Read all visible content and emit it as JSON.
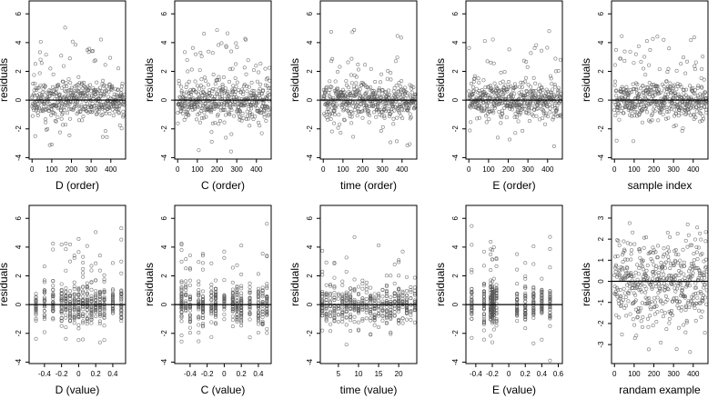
{
  "chart_data": [
    {
      "type": "scatter",
      "xlabel": "D (order)",
      "ylabel": "residuals",
      "xlim": [
        -15,
        475
      ],
      "ylim": [
        -4.1,
        6.9
      ],
      "xticks": [
        0,
        100,
        200,
        300,
        400
      ],
      "yticks": [
        -4,
        -2,
        0,
        2,
        4,
        6
      ],
      "hline": 0,
      "points": {
        "generator": "order",
        "n": 470,
        "seed": 11
      }
    },
    {
      "type": "scatter",
      "xlabel": "C (order)",
      "ylabel": "residuals",
      "xlim": [
        -15,
        475
      ],
      "ylim": [
        -4.1,
        6.9
      ],
      "xticks": [
        0,
        100,
        200,
        300,
        400
      ],
      "yticks": [
        -4,
        -2,
        0,
        2,
        4,
        6
      ],
      "hline": 0,
      "points": {
        "generator": "order",
        "n": 470,
        "seed": 23
      }
    },
    {
      "type": "scatter",
      "xlabel": "time (order)",
      "ylabel": "residuals",
      "xlim": [
        -15,
        475
      ],
      "ylim": [
        -4.1,
        6.9
      ],
      "xticks": [
        0,
        100,
        200,
        300,
        400
      ],
      "yticks": [
        -4,
        -2,
        0,
        2,
        4,
        6
      ],
      "hline": 0,
      "points": {
        "generator": "order",
        "n": 470,
        "seed": 37
      }
    },
    {
      "type": "scatter",
      "xlabel": "E (order)",
      "ylabel": "residuals",
      "xlim": [
        -15,
        475
      ],
      "ylim": [
        -4.1,
        6.9
      ],
      "xticks": [
        0,
        100,
        200,
        300,
        400
      ],
      "yticks": [
        -4,
        -2,
        0,
        2,
        4,
        6
      ],
      "hline": 0,
      "points": {
        "generator": "order",
        "n": 470,
        "seed": 41
      }
    },
    {
      "type": "scatter",
      "xlabel": "sample index",
      "ylabel": "residuals",
      "xlim": [
        -15,
        475
      ],
      "ylim": [
        -4.1,
        6.9
      ],
      "xticks": [
        0,
        100,
        200,
        300,
        400
      ],
      "yticks": [
        -4,
        -2,
        0,
        2,
        4,
        6
      ],
      "hline": 0,
      "points": {
        "generator": "order",
        "n": 470,
        "seed": 53
      }
    },
    {
      "type": "scatter",
      "xlabel": "D (value)",
      "ylabel": "residuals",
      "xlim": [
        -0.58,
        0.55
      ],
      "ylim": [
        -4.1,
        6.9
      ],
      "xticks": [
        -0.4,
        -0.2,
        0.0,
        0.2,
        0.4
      ],
      "yticks": [
        -4,
        -2,
        0,
        2,
        4,
        6
      ],
      "hline": 0,
      "points": {
        "generator": "values",
        "n": 470,
        "seed": 61,
        "xvals": [
          -0.5,
          -0.4,
          -0.3,
          -0.2,
          -0.15,
          -0.1,
          -0.05,
          0.0,
          0.05,
          0.1,
          0.15,
          0.2,
          0.25,
          0.3,
          0.4,
          0.5
        ]
      }
    },
    {
      "type": "scatter",
      "xlabel": "C (value)",
      "ylabel": "residuals",
      "xlim": [
        -0.58,
        0.55
      ],
      "ylim": [
        -4.1,
        6.9
      ],
      "xticks": [
        -0.4,
        -0.2,
        0.0,
        0.2,
        0.4
      ],
      "yticks": [
        -4,
        -2,
        0,
        2,
        4,
        6
      ],
      "hline": 0,
      "points": {
        "generator": "values",
        "n": 470,
        "seed": 67,
        "xvals": [
          -0.5,
          -0.45,
          -0.4,
          -0.3,
          -0.25,
          -0.15,
          -0.1,
          0.0,
          0.1,
          0.15,
          0.2,
          0.3,
          0.4,
          0.45,
          0.5
        ]
      }
    },
    {
      "type": "scatter",
      "xlabel": "time (value)",
      "ylabel": "residuals",
      "xlim": [
        0.5,
        24.5
      ],
      "ylim": [
        -4.1,
        6.9
      ],
      "xticks": [
        5,
        10,
        15,
        20
      ],
      "yticks": [
        -4,
        -2,
        0,
        2,
        4,
        6
      ],
      "hline": 0,
      "points": {
        "generator": "values",
        "n": 470,
        "seed": 71,
        "xvals": [
          1,
          2,
          3,
          4,
          5,
          6,
          7,
          8,
          9,
          10,
          11,
          12,
          13,
          14,
          15,
          16,
          17,
          18,
          19,
          20,
          21,
          22,
          23,
          24
        ]
      }
    },
    {
      "type": "scatter",
      "xlabel": "E (value)",
      "ylabel": "residuals",
      "xlim": [
        -0.52,
        0.65
      ],
      "ylim": [
        -4.1,
        6.9
      ],
      "xticks": [
        -0.4,
        -0.2,
        0.0,
        0.2,
        0.4,
        0.6
      ],
      "yticks": [
        -4,
        -2,
        0,
        2,
        4,
        6
      ],
      "hline": 0,
      "points": {
        "generator": "values",
        "n": 470,
        "seed": 79,
        "xvals": [
          -0.45,
          -0.3,
          -0.22,
          -0.2,
          -0.2,
          -0.2,
          -0.18,
          -0.15,
          0.1,
          0.2,
          0.3,
          0.4,
          0.5
        ]
      }
    },
    {
      "type": "scatter",
      "xlabel": "randam example",
      "ylabel": "residuals",
      "xlim": [
        -15,
        475
      ],
      "ylim": [
        -3.9,
        3.6
      ],
      "xticks": [
        0,
        100,
        200,
        300,
        400
      ],
      "yticks": [
        -3,
        -2,
        -1,
        0,
        1,
        2,
        3
      ],
      "hline": 0,
      "points": {
        "generator": "random",
        "n": 470,
        "seed": 97
      }
    }
  ]
}
